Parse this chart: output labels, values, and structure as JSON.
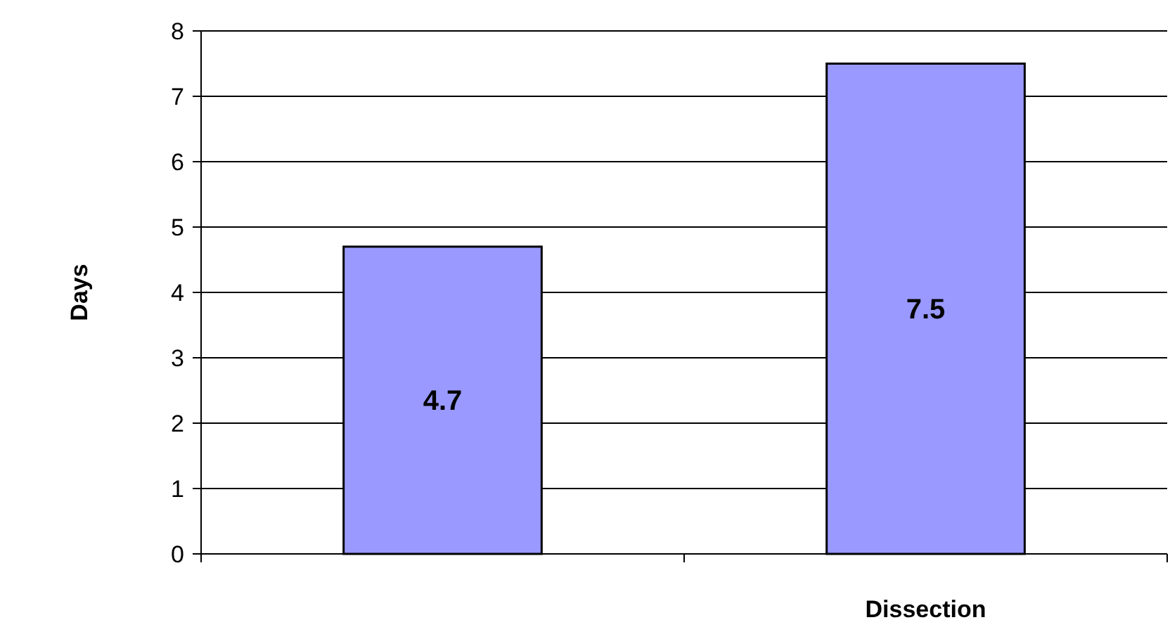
{
  "chart_data": {
    "type": "bar",
    "ylabel": "Days",
    "categories": [
      null,
      "Dissection"
    ],
    "values": [
      4.7,
      7.5
    ],
    "color": "#9999ff",
    "ylim": [
      0,
      8
    ],
    "yticks": [
      0,
      1,
      2,
      3,
      4,
      5,
      6,
      7,
      8
    ],
    "grid": "y",
    "data_labels": true
  }
}
